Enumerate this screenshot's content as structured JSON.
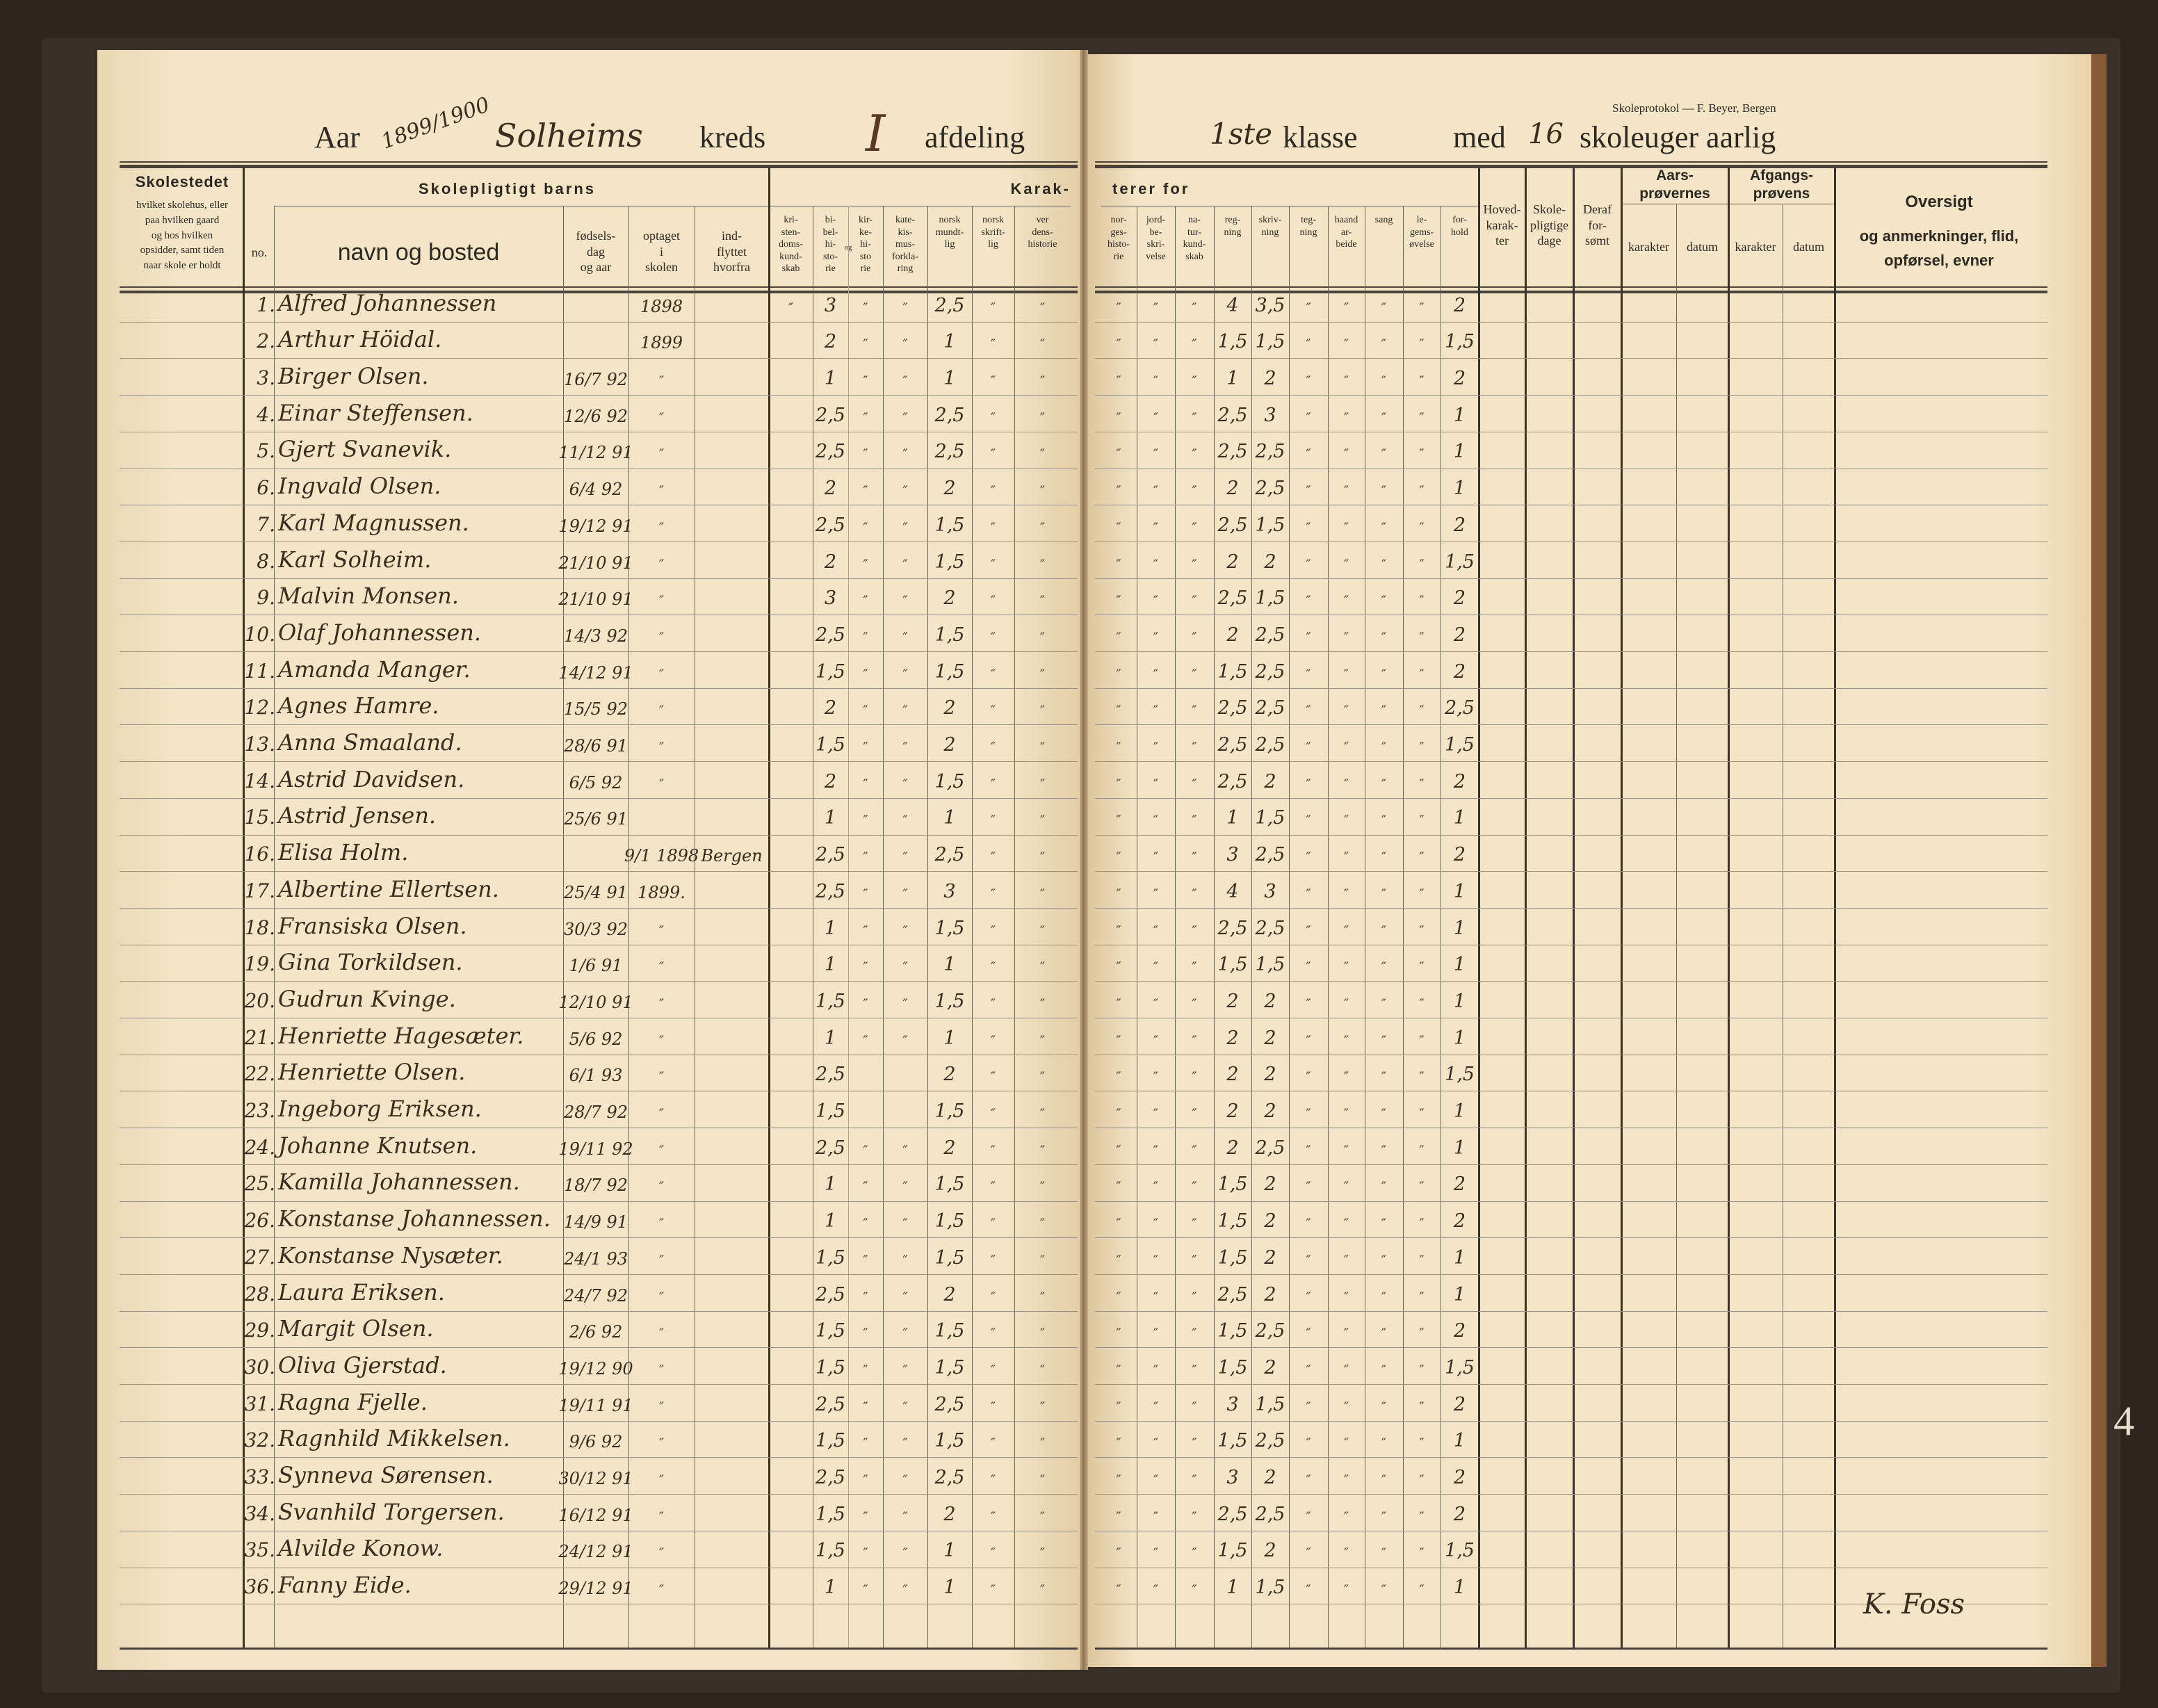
{
  "left_header": {
    "aar_label": "Aar",
    "year": "1899/1900",
    "kreds_name": "Solheims",
    "kreds_label": "kreds",
    "afdeling": "I",
    "afdeling_label": "afdeling"
  },
  "right_header": {
    "publisher": "Skoleprotokol — F. Beyer, Bergen",
    "klasse": "1ste",
    "klasse_label": "klasse",
    "med_label": "med",
    "weeks": "16",
    "weeks_label": "skoleuger aarlig"
  },
  "columns": {
    "skolestedet_title": "Skolestedet",
    "skolestedet_sub": "hvilket skolehus, eller\npaa hvilken gaard\nog hos hvilken\nopsidder, samt tiden\nnaar skole er holdt",
    "barns_title": "Skolepligtigt barns",
    "no": "no.",
    "navn": "navn og bosted",
    "fodsel": "fødsels-\ndag\nog aar",
    "optaget": "optaget\ni\nskolen",
    "indflyttet": "ind-\nflyttet\nhvorfra",
    "karak": "Karak-",
    "terer_for": "terer for",
    "og": "og",
    "subjects": [
      "kri-\nsten-\ndoms-\nkund-\nskab",
      "bi-\nbel-\nhi-\nsto-\nrie",
      "kir-\nke-\nhi-\nsto\nrie",
      "kate-\nkis-\nmus-\nforkla-\nring",
      "norsk\nmundt-\nlig",
      "norsk\nskrift-\nlig",
      "ver\ndens-\nhistorie",
      "nor-\nges-\nhisto-\nrie",
      "jord-\nbe-\nskri-\nvelse",
      "na-\ntur-\nkund-\nskab",
      "reg-\nning",
      "skriv-\nning",
      "teg-\nning",
      "haand\nar-\nbeide",
      "sang",
      "le-\ngems-\nøvelse",
      "for-\nhold"
    ],
    "hoved": "Hoved-\nkarak-\nter",
    "skolepligtige": "Skole-\npligtige\ndage",
    "deraf": "Deraf\nfor-\nsømt",
    "aars_title": "Aars-\nprøvernes",
    "afgangs_title": "Afgangs-\nprøvens",
    "karakter": "karakter",
    "datum": "datum",
    "oversigt_title": "Oversigt",
    "oversigt_sub": "og anmerkninger, flid,\nopførsel, evner"
  },
  "ditto": "″",
  "rows": [
    {
      "no": "1.",
      "name": "Alfred Johannessen",
      "born": "",
      "admitted": "1898",
      "from": "",
      "grades": [
        "″",
        "3",
        "″",
        "″",
        "2,5",
        "″",
        "″",
        "″",
        "″",
        "″",
        "4",
        "3,5",
        "″",
        "″",
        "″",
        "″",
        "2"
      ]
    },
    {
      "no": "2.",
      "name": "Arthur Höidal.",
      "born": "",
      "admitted": "1899",
      "from": "",
      "grades": [
        "",
        "2",
        "″",
        "″",
        "1",
        "″",
        "″",
        "″",
        "″",
        "″",
        "1,5",
        "1,5",
        "″",
        "″",
        "″",
        "″",
        "1,5"
      ]
    },
    {
      "no": "3.",
      "name": "Birger Olsen.",
      "born": "16/7 92",
      "admitted": "″",
      "from": "",
      "grades": [
        "",
        "1",
        "″",
        "″",
        "1",
        "″",
        "″",
        "″",
        "″",
        "″",
        "1",
        "2",
        "″",
        "″",
        "″",
        "″",
        "2"
      ]
    },
    {
      "no": "4.",
      "name": "Einar Steffensen.",
      "born": "12/6 92",
      "admitted": "″",
      "from": "",
      "grades": [
        "",
        "2,5",
        "″",
        "″",
        "2,5",
        "″",
        "″",
        "″",
        "″",
        "″",
        "2,5",
        "3",
        "″",
        "″",
        "″",
        "″",
        "1"
      ]
    },
    {
      "no": "5.",
      "name": "Gjert Svanevik.",
      "born": "11/12 91",
      "admitted": "″",
      "from": "",
      "grades": [
        "",
        "2,5",
        "″",
        "″",
        "2,5",
        "″",
        "″",
        "″",
        "″",
        "″",
        "2,5",
        "2,5",
        "″",
        "″",
        "″",
        "″",
        "1"
      ]
    },
    {
      "no": "6.",
      "name": "Ingvald Olsen.",
      "born": "6/4 92",
      "admitted": "″",
      "from": "",
      "grades": [
        "",
        "2",
        "″",
        "″",
        "2",
        "″",
        "″",
        "″",
        "″",
        "″",
        "2",
        "2,5",
        "″",
        "″",
        "″",
        "″",
        "1"
      ]
    },
    {
      "no": "7.",
      "name": "Karl Magnussen.",
      "born": "19/12 91",
      "admitted": "″",
      "from": "",
      "grades": [
        "",
        "2,5",
        "″",
        "″",
        "1,5",
        "″",
        "″",
        "″",
        "″",
        "″",
        "2,5",
        "1,5",
        "″",
        "″",
        "″",
        "″",
        "2"
      ]
    },
    {
      "no": "8.",
      "name": "Karl Solheim.",
      "born": "21/10 91",
      "admitted": "″",
      "from": "",
      "grades": [
        "",
        "2",
        "″",
        "″",
        "1,5",
        "″",
        "″",
        "″",
        "″",
        "″",
        "2",
        "2",
        "″",
        "″",
        "″",
        "″",
        "1,5"
      ]
    },
    {
      "no": "9.",
      "name": "Malvin Monsen.",
      "born": "21/10 91",
      "admitted": "″",
      "from": "",
      "grades": [
        "",
        "3",
        "″",
        "″",
        "2",
        "″",
        "″",
        "″",
        "″",
        "″",
        "2,5",
        "1,5",
        "″",
        "″",
        "″",
        "″",
        "2"
      ]
    },
    {
      "no": "10.",
      "name": "Olaf Johannessen.",
      "born": "14/3 92",
      "admitted": "″",
      "from": "",
      "grades": [
        "",
        "2,5",
        "″",
        "″",
        "1,5",
        "″",
        "″",
        "″",
        "″",
        "″",
        "2",
        "2,5",
        "″",
        "″",
        "″",
        "″",
        "2"
      ]
    },
    {
      "no": "11.",
      "name": "Amanda Manger.",
      "born": "14/12 91",
      "admitted": "″",
      "from": "",
      "grades": [
        "",
        "1,5",
        "″",
        "″",
        "1,5",
        "″",
        "″",
        "″",
        "″",
        "″",
        "1,5",
        "2,5",
        "″",
        "″",
        "″",
        "″",
        "2"
      ]
    },
    {
      "no": "12.",
      "name": "Agnes Hamre.",
      "born": "15/5 92",
      "admitted": "″",
      "from": "",
      "grades": [
        "",
        "2",
        "″",
        "″",
        "2",
        "″",
        "″",
        "″",
        "″",
        "″",
        "2,5",
        "2,5",
        "″",
        "″",
        "″",
        "″",
        "2,5"
      ]
    },
    {
      "no": "13.",
      "name": "Anna Smaaland.",
      "born": "28/6 91",
      "admitted": "″",
      "from": "",
      "grades": [
        "",
        "1,5",
        "″",
        "″",
        "2",
        "″",
        "″",
        "″",
        "″",
        "″",
        "2,5",
        "2,5",
        "″",
        "″",
        "″",
        "″",
        "1,5"
      ]
    },
    {
      "no": "14.",
      "name": "Astrid Davidsen.",
      "born": "6/5 92",
      "admitted": "″",
      "from": "",
      "grades": [
        "",
        "2",
        "″",
        "″",
        "1,5",
        "″",
        "″",
        "″",
        "″",
        "″",
        "2,5",
        "2",
        "″",
        "″",
        "″",
        "″",
        "2"
      ]
    },
    {
      "no": "15.",
      "name": "Astrid Jensen.",
      "born": "25/6 91",
      "admitted": "",
      "from": "",
      "grades": [
        "",
        "1",
        "″",
        "″",
        "1",
        "″",
        "″",
        "″",
        "″",
        "″",
        "1",
        "1,5",
        "″",
        "″",
        "″",
        "″",
        "1"
      ]
    },
    {
      "no": "16.",
      "name": "Elisa Holm.",
      "born": "",
      "admitted": "9/1 1898",
      "from": "Bergen",
      "grades": [
        "",
        "2,5",
        "″",
        "″",
        "2,5",
        "″",
        "″",
        "″",
        "″",
        "″",
        "3",
        "2,5",
        "″",
        "″",
        "″",
        "″",
        "2"
      ]
    },
    {
      "no": "17.",
      "name": "Albertine Ellertsen.",
      "born": "25/4 91",
      "admitted": "1899.",
      "from": "",
      "grades": [
        "",
        "2,5",
        "″",
        "″",
        "3",
        "″",
        "″",
        "″",
        "″",
        "″",
        "4",
        "3",
        "″",
        "″",
        "″",
        "″",
        "1"
      ]
    },
    {
      "no": "18.",
      "name": "Fransiska Olsen.",
      "born": "30/3 92",
      "admitted": "″",
      "from": "",
      "grades": [
        "",
        "1",
        "″",
        "″",
        "1,5",
        "″",
        "″",
        "″",
        "″",
        "″",
        "2,5",
        "2,5",
        "″",
        "″",
        "″",
        "″",
        "1"
      ]
    },
    {
      "no": "19.",
      "name": "Gina Torkildsen.",
      "born": "1/6 91",
      "admitted": "″",
      "from": "",
      "grades": [
        "",
        "1",
        "″",
        "″",
        "1",
        "″",
        "″",
        "″",
        "″",
        "″",
        "1,5",
        "1,5",
        "″",
        "″",
        "″",
        "″",
        "1"
      ]
    },
    {
      "no": "20.",
      "name": "Gudrun Kvinge.",
      "born": "12/10 91",
      "admitted": "″",
      "from": "",
      "grades": [
        "",
        "1,5",
        "″",
        "″",
        "1,5",
        "″",
        "″",
        "″",
        "″",
        "″",
        "2",
        "2",
        "″",
        "″",
        "″",
        "″",
        "1"
      ]
    },
    {
      "no": "21.",
      "name": "Henriette Hagesæter.",
      "born": "5/6 92",
      "admitted": "″",
      "from": "",
      "grades": [
        "",
        "1",
        "″",
        "″",
        "1",
        "″",
        "″",
        "″",
        "″",
        "″",
        "2",
        "2",
        "″",
        "″",
        "″",
        "″",
        "1"
      ]
    },
    {
      "no": "22.",
      "name": "Henriette Olsen.",
      "born": "6/1 93",
      "admitted": "″",
      "from": "",
      "grades": [
        "",
        "2,5",
        "",
        "",
        "2",
        "″",
        "″",
        "″",
        "″",
        "″",
        "2",
        "2",
        "″",
        "″",
        "″",
        "″",
        "1,5"
      ]
    },
    {
      "no": "23.",
      "name": "Ingeborg Eriksen.",
      "born": "28/7 92",
      "admitted": "″",
      "from": "",
      "grades": [
        "",
        "1,5",
        "",
        "",
        "1,5",
        "″",
        "″",
        "″",
        "″",
        "″",
        "2",
        "2",
        "″",
        "″",
        "″",
        "″",
        "1"
      ]
    },
    {
      "no": "24.",
      "name": "Johanne Knutsen.",
      "born": "19/11 92",
      "admitted": "″",
      "from": "",
      "grades": [
        "",
        "2,5",
        "″",
        "″",
        "2",
        "″",
        "″",
        "″",
        "″",
        "″",
        "2",
        "2,5",
        "″",
        "″",
        "″",
        "″",
        "1"
      ]
    },
    {
      "no": "25.",
      "name": "Kamilla Johannessen.",
      "born": "18/7 92",
      "admitted": "″",
      "from": "",
      "grades": [
        "",
        "1",
        "″",
        "″",
        "1,5",
        "″",
        "″",
        "″",
        "″",
        "″",
        "1,5",
        "2",
        "″",
        "″",
        "″",
        "″",
        "2"
      ]
    },
    {
      "no": "26.",
      "name": "Konstanse Johannessen.",
      "born": "14/9 91",
      "admitted": "″",
      "from": "",
      "grades": [
        "",
        "1",
        "″",
        "″",
        "1,5",
        "″",
        "″",
        "″",
        "″",
        "″",
        "1,5",
        "2",
        "″",
        "″",
        "″",
        "″",
        "2"
      ]
    },
    {
      "no": "27.",
      "name": "Konstanse Nysæter.",
      "born": "24/1 93",
      "admitted": "″",
      "from": "",
      "grades": [
        "",
        "1,5",
        "″",
        "″",
        "1,5",
        "″",
        "″",
        "″",
        "″",
        "″",
        "1,5",
        "2",
        "″",
        "″",
        "″",
        "″",
        "1"
      ]
    },
    {
      "no": "28.",
      "name": "Laura Eriksen.",
      "born": "24/7 92",
      "admitted": "″",
      "from": "",
      "grades": [
        "",
        "2,5",
        "″",
        "″",
        "2",
        "″",
        "″",
        "″",
        "″",
        "″",
        "2,5",
        "2",
        "″",
        "″",
        "″",
        "″",
        "1"
      ]
    },
    {
      "no": "29.",
      "name": "Margit Olsen.",
      "born": "2/6 92",
      "admitted": "″",
      "from": "",
      "grades": [
        "",
        "1,5",
        "″",
        "″",
        "1,5",
        "″",
        "″",
        "″",
        "″",
        "″",
        "1,5",
        "2,5",
        "″",
        "″",
        "″",
        "″",
        "2"
      ]
    },
    {
      "no": "30.",
      "name": "Oliva Gjerstad.",
      "born": "19/12 90",
      "admitted": "″",
      "from": "",
      "grades": [
        "",
        "1,5",
        "″",
        "″",
        "1,5",
        "″",
        "″",
        "″",
        "″",
        "″",
        "1,5",
        "2",
        "″",
        "″",
        "″",
        "″",
        "1,5"
      ]
    },
    {
      "no": "31.",
      "name": "Ragna Fjelle.",
      "born": "19/11 91",
      "admitted": "″",
      "from": "",
      "grades": [
        "",
        "2,5",
        "″",
        "″",
        "2,5",
        "″",
        "″",
        "″",
        "″",
        "″",
        "3",
        "1,5",
        "″",
        "″",
        "″",
        "″",
        "2"
      ]
    },
    {
      "no": "32.",
      "name": "Ragnhild Mikkelsen.",
      "born": "9/6 92",
      "admitted": "″",
      "from": "",
      "grades": [
        "",
        "1,5",
        "″",
        "″",
        "1,5",
        "″",
        "″",
        "″",
        "″",
        "″",
        "1,5",
        "2,5",
        "″",
        "″",
        "″",
        "″",
        "1"
      ]
    },
    {
      "no": "33.",
      "name": "Synneva Sørensen.",
      "born": "30/12 91",
      "admitted": "″",
      "from": "",
      "grades": [
        "",
        "2,5",
        "″",
        "″",
        "2,5",
        "″",
        "″",
        "″",
        "″",
        "″",
        "3",
        "2",
        "″",
        "″",
        "″",
        "″",
        "2"
      ]
    },
    {
      "no": "34.",
      "name": "Svanhild Torgersen.",
      "born": "16/12 91",
      "admitted": "″",
      "from": "",
      "grades": [
        "",
        "1,5",
        "″",
        "″",
        "2",
        "″",
        "″",
        "″",
        "″",
        "″",
        "2,5",
        "2,5",
        "″",
        "″",
        "″",
        "″",
        "2"
      ]
    },
    {
      "no": "35.",
      "name": "Alvilde Konow.",
      "born": "24/12 91",
      "admitted": "″",
      "from": "",
      "grades": [
        "",
        "1,5",
        "″",
        "″",
        "1",
        "″",
        "″",
        "″",
        "″",
        "″",
        "1,5",
        "2",
        "″",
        "″",
        "″",
        "″",
        "1,5"
      ]
    },
    {
      "no": "36.",
      "name": "Fanny Eide.",
      "born": "29/12 91",
      "admitted": "″",
      "from": "",
      "grades": [
        "",
        "1",
        "″",
        "″",
        "1",
        "″",
        "″",
        "″",
        "″",
        "″",
        "1",
        "1,5",
        "″",
        "″",
        "″",
        "″",
        "1"
      ]
    }
  ],
  "signature": "K. Foss",
  "page_edge_mark": "4"
}
